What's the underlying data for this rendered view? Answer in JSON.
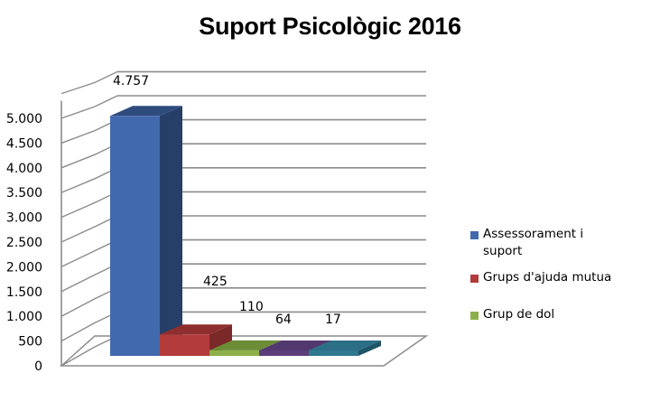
{
  "chart_data": {
    "type": "bar",
    "subtype": "3d-column",
    "title": "Suport Psicològic  2016",
    "xlabel": "",
    "ylabel": "",
    "ylim": [
      0,
      5000
    ],
    "yticks": [
      "0",
      "500",
      "1.000",
      "1.500",
      "2.000",
      "2.500",
      "3.000",
      "3.500",
      "4.000",
      "4.500",
      "5.000"
    ],
    "grid": true,
    "legend_position": "right",
    "series": [
      {
        "name": "Assessorament i suport",
        "value": 4757,
        "label": "4.757",
        "color": "#4169AE",
        "side": "#263F68",
        "top": "#2E4B7D"
      },
      {
        "name": "Grups d'ajuda mutua",
        "value": 425,
        "label": "425",
        "color": "#B43B3B",
        "side": "#7A2828",
        "top": "#8F2E2E"
      },
      {
        "name": "Grup de dol",
        "value": 110,
        "label": "110",
        "color": "#8DB04A",
        "side": "#5E7A2E",
        "top": "#6C8C36"
      },
      {
        "name": "",
        "value": 64,
        "label": "64",
        "color": "#5B3E7A",
        "side": "#3E2955",
        "top": "#533870"
      },
      {
        "name": "",
        "value": 17,
        "label": "17",
        "color": "#2E7890",
        "side": "#1F5566",
        "top": "#2B6F86"
      }
    ]
  },
  "legend": {
    "items": [
      {
        "label": "Assessorament i suport",
        "color": "#4169AE"
      },
      {
        "label": "Grups d'ajuda mutua",
        "color": "#B43B3B"
      },
      {
        "label": "Grup de dol",
        "color": "#8DB04A"
      }
    ]
  }
}
